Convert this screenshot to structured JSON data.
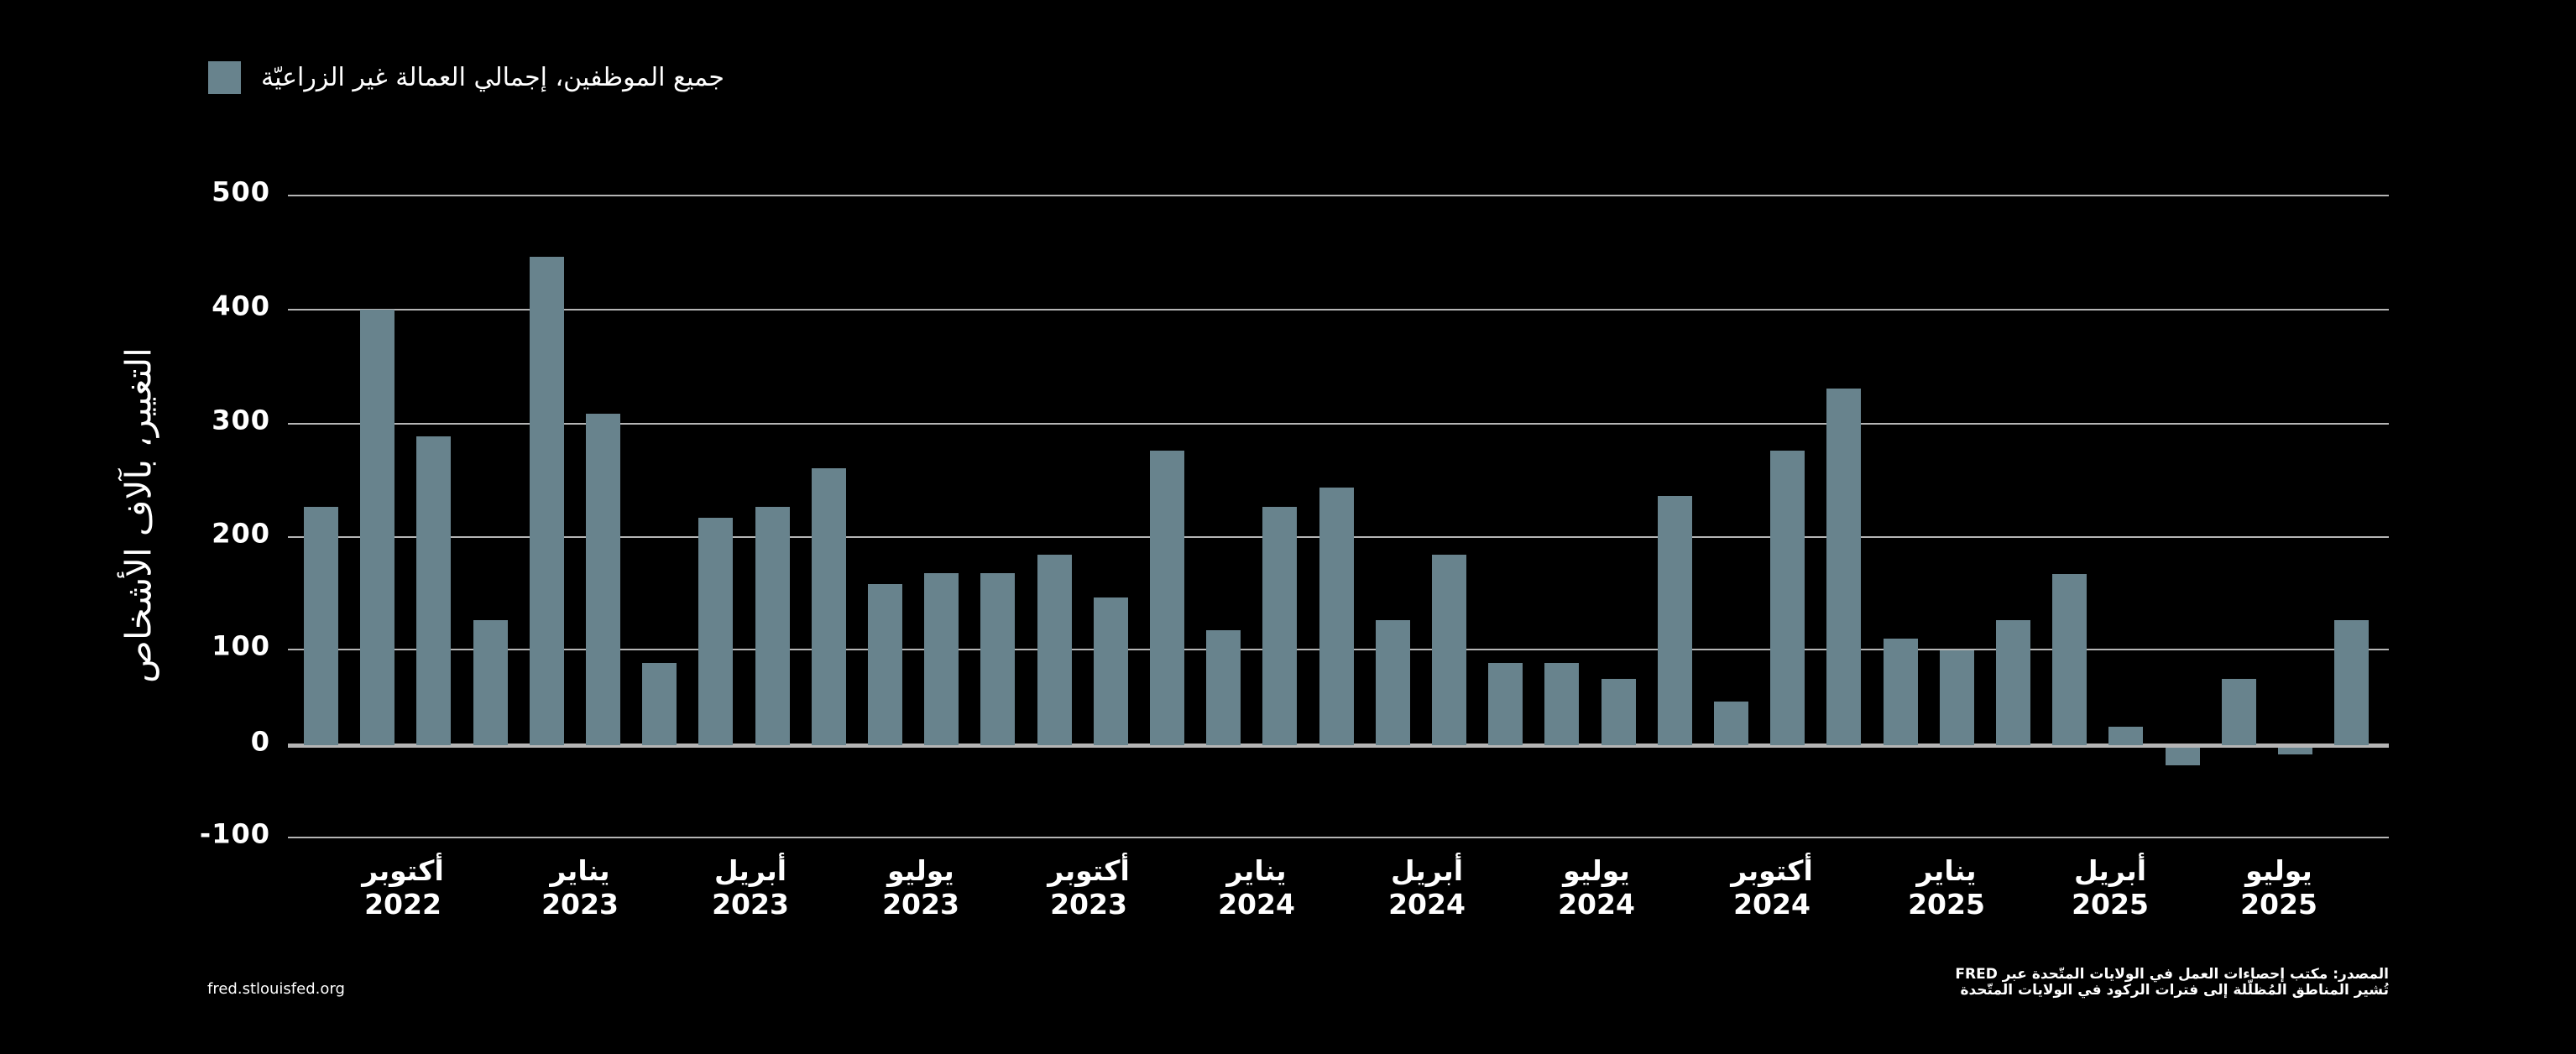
{
  "legend": {
    "label": "جميع الموظفين، إجمالي العمالة غير الزراعيّة",
    "color": "#68838d"
  },
  "y_axis": {
    "label": "التغيير، بآلاف الأشخاص",
    "ticks": [
      "500",
      "400",
      "300",
      "200",
      "100",
      "0",
      "-100"
    ]
  },
  "x_axis": {
    "labels": [
      {
        "month": "أكتوبر",
        "year": "2022"
      },
      {
        "month": "يناير",
        "year": "2023"
      },
      {
        "month": "أبريل",
        "year": "2023"
      },
      {
        "month": "يوليو",
        "year": "2023"
      },
      {
        "month": "أكتوبر",
        "year": "2023"
      },
      {
        "month": "يناير",
        "year": "2024"
      },
      {
        "month": "أبريل",
        "year": "2024"
      },
      {
        "month": "يوليو",
        "year": "2024"
      },
      {
        "month": "أكتوبر",
        "year": "2024"
      },
      {
        "month": "يناير",
        "year": "2025"
      },
      {
        "month": "أبريل",
        "year": "2025"
      },
      {
        "month": "يوليو",
        "year": "2025"
      }
    ]
  },
  "footer": {
    "site": "fred.stlouisfed.org",
    "source_line1": "المصدر: مكتب إحصاءات العمل في الولايات المتّحدة عبر FRED",
    "source_line2": "تُشير المناطق المُظلّلة إلى فترات الركود في الولايات المتّحدة"
  },
  "colors": {
    "background": "#000000",
    "bar": "#68838d",
    "grid": "#b5b5b5",
    "text": "#ffffff"
  },
  "chart_data": {
    "type": "bar",
    "title": "",
    "xlabel": "",
    "ylabel": "التغيير، بآلاف الأشخاص",
    "ylim": [
      -100,
      500
    ],
    "grid": true,
    "legend_position": "top-left",
    "series": [
      {
        "name": "جميع الموظفين، إجمالي العمالة غير الزراعيّة",
        "values": [
          227,
          400,
          289,
          126,
          446,
          309,
          86,
          217,
          227,
          261,
          158,
          168,
          168,
          184,
          146,
          276,
          117,
          227,
          244,
          126,
          184,
          86,
          86,
          69,
          236,
          46,
          276,
          331,
          110,
          99,
          126,
          167,
          19,
          -22,
          69,
          -10,
          126
        ]
      }
    ],
    "categories": [
      "2022-09",
      "2022-10",
      "2022-11",
      "2022-12",
      "2023-01",
      "2023-02",
      "2023-03",
      "2023-04",
      "2023-05",
      "2023-06",
      "2023-07",
      "2023-08",
      "2023-09",
      "2023-10",
      "2023-11",
      "2023-12",
      "2024-01",
      "2024-02",
      "2024-03",
      "2024-04",
      "2024-05",
      "2024-06",
      "2024-07",
      "2024-08",
      "2024-09",
      "2024-10",
      "2024-11",
      "2024-12",
      "2025-01",
      "2025-02",
      "2025-03",
      "2025-04",
      "2025-05",
      "2025-06",
      "2025-07",
      "2025-08",
      "2025-09"
    ],
    "tick_labels": [
      "أكتوبر 2022",
      "يناير 2023",
      "أبريل 2023",
      "يوليو 2023",
      "أكتوبر 2023",
      "يناير 2024",
      "أبريل 2024",
      "يوليو 2024",
      "أكتوبر 2024",
      "يناير 2025",
      "أبريل 2025",
      "يوليو 2025"
    ],
    "yticks": [
      -100,
      0,
      100,
      200,
      300,
      400,
      500
    ]
  }
}
